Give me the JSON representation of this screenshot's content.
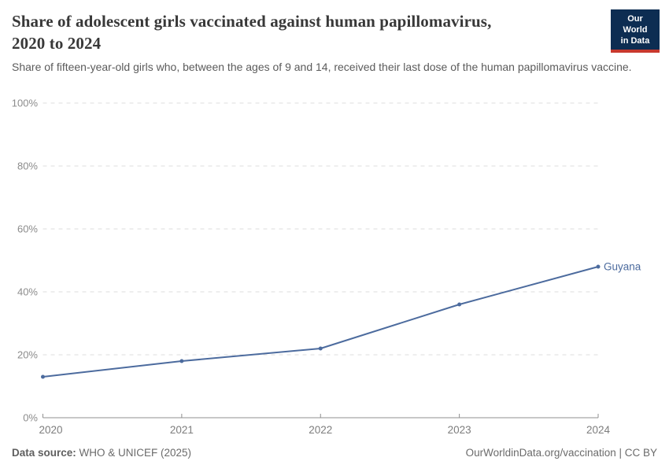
{
  "header": {
    "title_lines": [
      "Share of adolescent girls vaccinated against human papillomavirus,",
      "2020 to 2024"
    ],
    "subtitle": "Share of fifteen-year-old girls who, between the ages of 9 and 14, received their last dose of the human papillomavirus vaccine.",
    "logo": {
      "line1": "Our World",
      "line2": "in Data",
      "bg_color": "#0d2d52",
      "accent_color": "#c8392e"
    }
  },
  "chart_data": {
    "type": "line",
    "title": "Share of adolescent girls vaccinated against human papillomavirus, 2020 to 2024",
    "x": [
      "2020",
      "2021",
      "2022",
      "2023",
      "2024"
    ],
    "series": [
      {
        "name": "Guyana",
        "values": [
          13,
          18,
          22,
          36,
          48
        ],
        "color": "#4c6b9e"
      }
    ],
    "end_label": "Guyana",
    "ylim": [
      0,
      100
    ],
    "ytick_values": [
      0,
      20,
      40,
      60,
      80,
      100
    ],
    "ytick_labels": [
      "0%",
      "20%",
      "40%",
      "60%",
      "80%",
      "100%"
    ],
    "grid": "horizontal-dashed",
    "legend_position": "end-of-line",
    "colors": {
      "gridline": "#dedede",
      "axis": "#8f8f8f",
      "ytick_label": "#8c8c8c",
      "xtick_label": "#7d7d7d"
    }
  },
  "footer": {
    "datasource_label": "Data source:",
    "datasource_value": " WHO & UNICEF (2025)",
    "credit": "OurWorldinData.org/vaccination | CC BY"
  }
}
